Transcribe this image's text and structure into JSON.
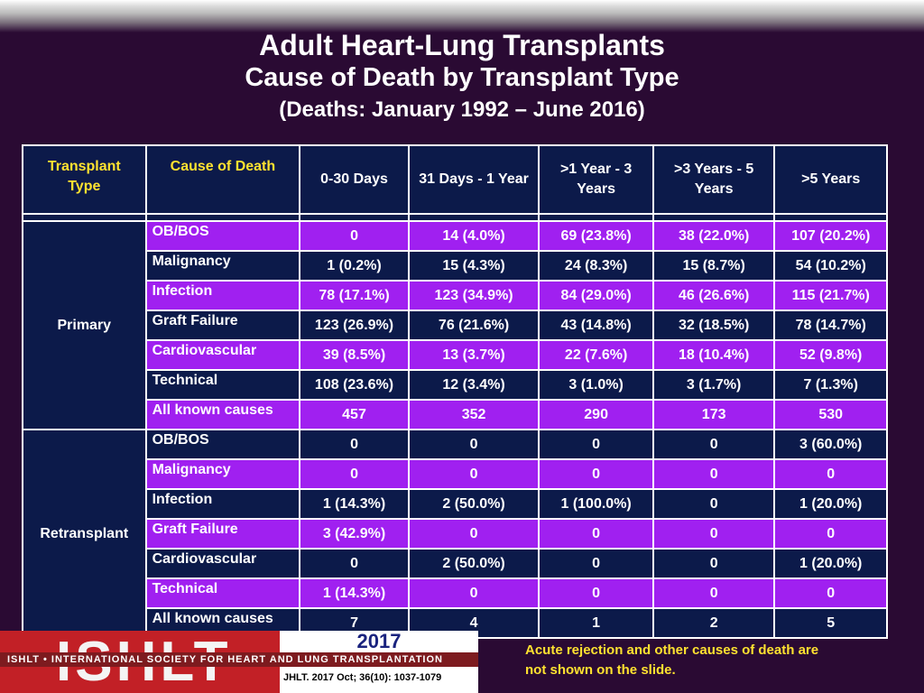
{
  "title": "Adult Heart-Lung Transplants",
  "subtitle": "Cause of Death by Transplant Type",
  "period": "(Deaths: January 1992 – June 2016)",
  "table": {
    "headers": {
      "type_l1": "Transplant",
      "type_l2": "Type",
      "cause": "Cause of Death",
      "c1": "0-30 Days",
      "c2": "31 Days - 1 Year",
      "c3_l1": ">1 Year - 3",
      "c3_l2": "Years",
      "c4_l1": ">3 Years - 5",
      "c4_l2": "Years",
      "c5": ">5 Years"
    },
    "groups": [
      {
        "name": "Primary",
        "rows": [
          {
            "cause": "OB/BOS",
            "v": [
              "0",
              "14 (4.0%)",
              "69 (23.8%)",
              "38 (22.0%)",
              "107 (20.2%)"
            ]
          },
          {
            "cause": "Malignancy",
            "v": [
              "1 (0.2%)",
              "15 (4.3%)",
              "24 (8.3%)",
              "15 (8.7%)",
              "54 (10.2%)"
            ]
          },
          {
            "cause": "Infection",
            "v": [
              "78 (17.1%)",
              "123 (34.9%)",
              "84 (29.0%)",
              "46 (26.6%)",
              "115 (21.7%)"
            ]
          },
          {
            "cause": "Graft Failure",
            "v": [
              "123 (26.9%)",
              "76 (21.6%)",
              "43 (14.8%)",
              "32 (18.5%)",
              "78 (14.7%)"
            ]
          },
          {
            "cause": "Cardiovascular",
            "v": [
              "39 (8.5%)",
              "13 (3.7%)",
              "22 (7.6%)",
              "18 (10.4%)",
              "52 (9.8%)"
            ]
          },
          {
            "cause": "Technical",
            "v": [
              "108 (23.6%)",
              "12 (3.4%)",
              "3 (1.0%)",
              "3 (1.7%)",
              "7 (1.3%)"
            ]
          },
          {
            "cause": "All known causes",
            "v": [
              "457",
              "352",
              "290",
              "173",
              "530"
            ]
          }
        ]
      },
      {
        "name": "Retransplant",
        "rows": [
          {
            "cause": "OB/BOS",
            "v": [
              "0",
              "0",
              "0",
              "0",
              "3 (60.0%)"
            ]
          },
          {
            "cause": "Malignancy",
            "v": [
              "0",
              "0",
              "0",
              "0",
              "0"
            ]
          },
          {
            "cause": "Infection",
            "v": [
              "1 (14.3%)",
              "2 (50.0%)",
              "1 (100.0%)",
              "0",
              "1 (20.0%)"
            ]
          },
          {
            "cause": "Graft Failure",
            "v": [
              "3 (42.9%)",
              "0",
              "0",
              "0",
              "0"
            ]
          },
          {
            "cause": "Cardiovascular",
            "v": [
              "0",
              "2 (50.0%)",
              "0",
              "0",
              "1 (20.0%)"
            ]
          },
          {
            "cause": "Technical",
            "v": [
              "1 (14.3%)",
              "0",
              "0",
              "0",
              "0"
            ]
          },
          {
            "cause": "All known causes",
            "v": [
              "7",
              "4",
              "1",
              "2",
              "5"
            ]
          }
        ]
      }
    ]
  },
  "footer": {
    "logo": "ISHLT",
    "society": "ISHLT • INTERNATIONAL SOCIETY FOR HEART AND LUNG TRANSPLANTATION",
    "year": "2017",
    "journal": "JHLT. 2017 Oct; 36(10): 1037-1079",
    "note": "Acute rejection and other causes of death are not shown on the slide."
  },
  "colors": {
    "background": "#2a0a33",
    "navy": "#0c1a4a",
    "purple": "#a020f0",
    "header_text": "#ffe230",
    "logo_red": "#c22026"
  }
}
